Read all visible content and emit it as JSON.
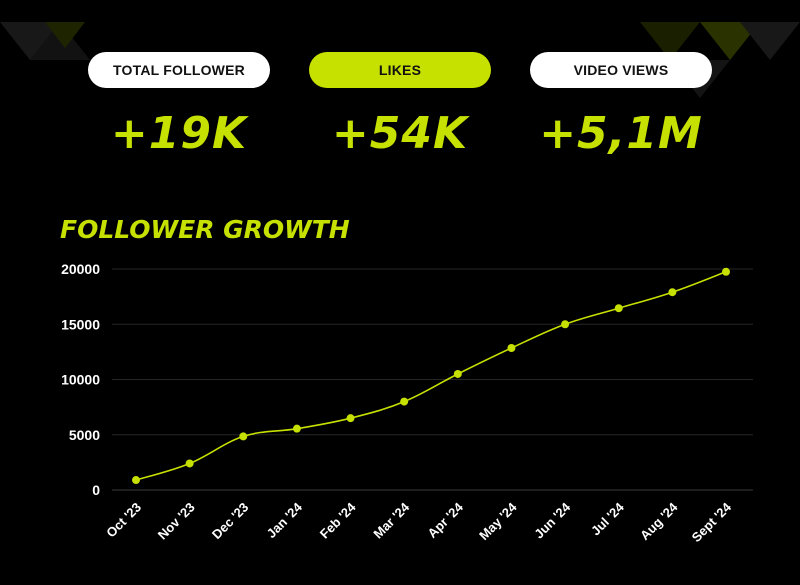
{
  "stats": [
    {
      "label": "TOTAL FOLLOWER",
      "value": "+19K"
    },
    {
      "label": "LIKES",
      "value": "+54K"
    },
    {
      "label": "VIDEO VIEWS",
      "value": "+5,1M"
    }
  ],
  "colors": {
    "accent": "#c6e000",
    "background": "#000000",
    "text": "#ffffff",
    "pill_text": "#111111"
  },
  "chart_data": {
    "type": "line",
    "title": "FOLLOWER GROWTH",
    "categories": [
      "Oct '23",
      "Nov '23",
      "Dec '23",
      "Jan '24",
      "Feb '24",
      "Mar '24",
      "Apr '24",
      "May '24",
      "Jun '24",
      "Jul '24",
      "Aug '24",
      "Sept '24"
    ],
    "series": [
      {
        "values": [
          900,
          2400,
          4850,
          5550,
          6500,
          8000,
          10500,
          12850,
          15000,
          16450,
          17900,
          19750
        ]
      }
    ],
    "yticks": [
      0,
      5000,
      10000,
      15000,
      20000
    ],
    "ylim": [
      0,
      20000
    ],
    "grid": true,
    "legend": "none"
  }
}
